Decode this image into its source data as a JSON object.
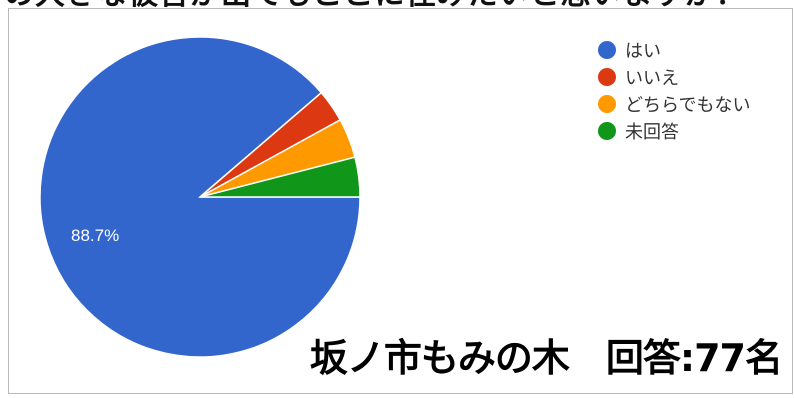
{
  "question": "の大きな被害が出てもここに住みたいと思いますか？",
  "caption": "坂ノ市もみの木　回答:77名",
  "chart_data": {
    "type": "pie",
    "categories": [
      "はい",
      "いいえ",
      "どちらでもない",
      "未回答"
    ],
    "values": [
      88.7,
      3.3,
      4.0,
      4.0
    ],
    "colors": [
      "#3366cc",
      "#dc3912",
      "#ff9900",
      "#109618"
    ],
    "data_labels": [
      "88.7%",
      "",
      "",
      ""
    ],
    "legend_placement": "top-right"
  }
}
